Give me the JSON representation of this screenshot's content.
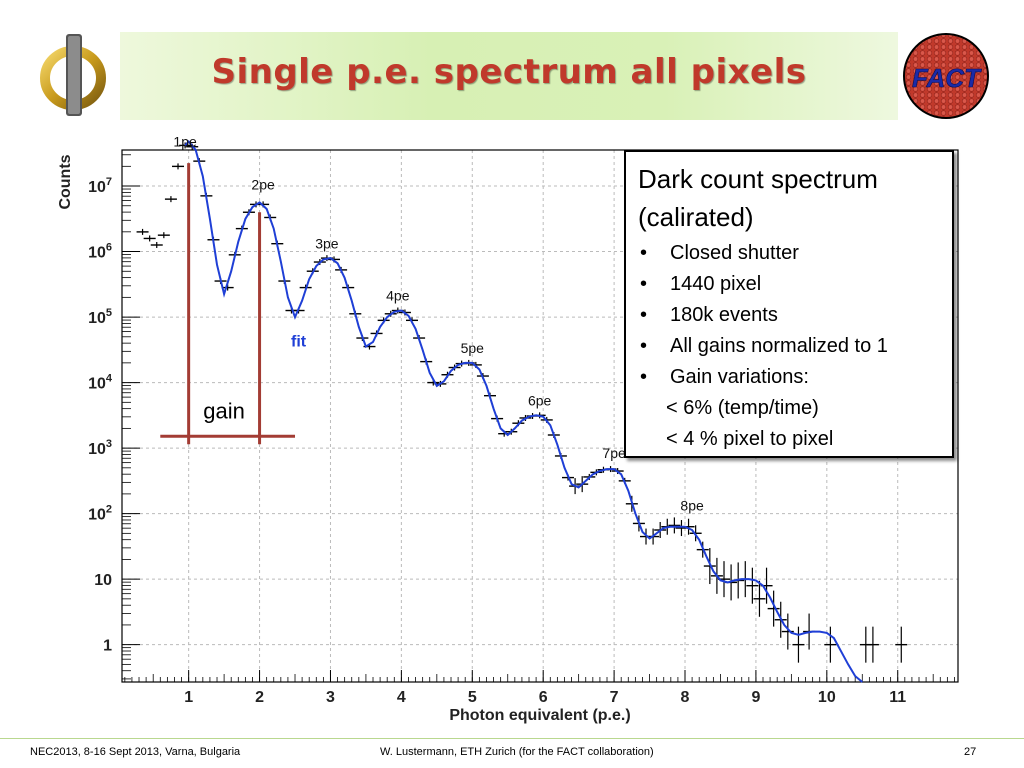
{
  "slide": {
    "title": "Single p.e. spectrum all pixels",
    "logo_left_glyph": "Φ",
    "logo_right_text": "FACT"
  },
  "info_box": {
    "title_line1": "Dark count spectrum",
    "title_line2": "(calirated)",
    "bullets": [
      "Closed shutter",
      "1440 pixel",
      "180k events",
      "All gains normalized to 1",
      "Gain variations:"
    ],
    "sub_lines": [
      "< 6% (temp/time)",
      "< 4 % pixel to pixel"
    ]
  },
  "footer": {
    "left": "NEC2013, 8-16 Sept 2013, Varna, Bulgaria",
    "center": "W. Lustermann, ETH Zurich (for the FACT collaboration)",
    "page": "27"
  },
  "colors": {
    "title": "#c0392b",
    "fit_line": "#1f3fd6",
    "gain_marker": "#a33c34",
    "fit_label": "#1f3fd6"
  },
  "chart_data": {
    "type": "line",
    "xlabel": "Photon equivalent (p.e.)",
    "ylabel": "Counts",
    "x_ticks": [
      "1",
      "2",
      "3",
      "4",
      "5",
      "6",
      "7",
      "8",
      "9",
      "10",
      "11"
    ],
    "y_ticks": [
      {
        "base": "1",
        "exp": ""
      },
      {
        "base": "10",
        "exp": ""
      },
      {
        "base": "10",
        "exp": "2"
      },
      {
        "base": "10",
        "exp": "3"
      },
      {
        "base": "10",
        "exp": "4"
      },
      {
        "base": "10",
        "exp": "5"
      },
      {
        "base": "10",
        "exp": "6"
      },
      {
        "base": "10",
        "exp": "7"
      }
    ],
    "xlim": [
      0.06,
      11.85
    ],
    "ylim_log10": [
      -0.57,
      7.55
    ],
    "log_y": true,
    "grid": true,
    "peak_labels": [
      {
        "text": "1pe",
        "x": 0.95,
        "y_log": 7.6
      },
      {
        "text": "2pe",
        "x": 2.05,
        "y_log": 6.95
      },
      {
        "text": "3pe",
        "x": 2.95,
        "y_log": 6.05
      },
      {
        "text": "4pe",
        "x": 3.95,
        "y_log": 5.25
      },
      {
        "text": "5pe",
        "x": 5.0,
        "y_log": 4.45
      },
      {
        "text": "6pe",
        "x": 5.95,
        "y_log": 3.65
      },
      {
        "text": "7pe",
        "x": 7.0,
        "y_log": 2.85
      },
      {
        "text": "8pe",
        "x": 8.1,
        "y_log": 2.05
      }
    ],
    "annotations": [
      {
        "text": "fit",
        "x": 2.55,
        "y_log": 4.55
      },
      {
        "text": "gain",
        "x": 1.5,
        "y_log": 3.45
      }
    ],
    "gain_marker": {
      "x1": 1.0,
      "x2": 2.0,
      "y_log_top1": 7.35,
      "y_log_top2": 6.6,
      "y_log_base": 3.18
    },
    "fit": {
      "x": [
        0.95,
        1.0,
        1.1,
        1.2,
        1.3,
        1.4,
        1.5,
        1.6,
        1.7,
        1.8,
        1.9,
        2.0,
        2.1,
        2.2,
        2.3,
        2.4,
        2.5,
        2.6,
        2.7,
        2.8,
        2.9,
        3.0,
        3.1,
        3.2,
        3.3,
        3.4,
        3.5,
        3.6,
        3.7,
        3.8,
        3.9,
        4.0,
        4.1,
        4.2,
        4.3,
        4.4,
        4.5,
        4.6,
        4.7,
        4.8,
        4.9,
        5.0,
        5.1,
        5.2,
        5.3,
        5.4,
        5.5,
        5.6,
        5.7,
        5.8,
        5.9,
        6.0,
        6.1,
        6.2,
        6.3,
        6.4,
        6.5,
        6.6,
        6.7,
        6.8,
        6.9,
        7.0,
        7.1,
        7.2,
        7.3,
        7.4,
        7.5,
        7.6,
        7.7,
        7.8,
        7.9,
        8.0,
        8.1,
        8.2,
        8.3,
        8.4,
        8.5,
        8.6,
        8.7,
        8.8,
        8.9,
        9.0,
        9.1,
        9.2,
        9.3,
        9.4,
        9.5,
        9.6,
        9.7,
        9.8,
        9.9,
        10.0,
        10.1,
        10.2,
        10.3,
        10.4,
        10.5,
        10.6,
        10.65
      ],
      "y_log": [
        7.62,
        7.68,
        7.55,
        7.15,
        6.5,
        5.8,
        5.35,
        5.7,
        6.15,
        6.5,
        6.68,
        6.75,
        6.65,
        6.35,
        5.85,
        5.3,
        5.0,
        5.25,
        5.58,
        5.78,
        5.88,
        5.9,
        5.82,
        5.6,
        5.25,
        4.85,
        4.55,
        4.62,
        4.85,
        5.0,
        5.08,
        5.1,
        5.02,
        4.82,
        4.5,
        4.15,
        3.95,
        4.02,
        4.18,
        4.27,
        4.3,
        4.3,
        4.2,
        3.95,
        3.6,
        3.3,
        3.2,
        3.3,
        3.42,
        3.48,
        3.5,
        3.48,
        3.35,
        3.05,
        2.7,
        2.45,
        2.4,
        2.5,
        2.6,
        2.65,
        2.68,
        2.68,
        2.6,
        2.35,
        2.0,
        1.72,
        1.62,
        1.7,
        1.78,
        1.8,
        1.8,
        1.8,
        1.75,
        1.6,
        1.35,
        1.12,
        0.98,
        0.95,
        0.98,
        1.0,
        1.0,
        0.98,
        0.9,
        0.72,
        0.5,
        0.3,
        0.18,
        0.15,
        0.18,
        0.2,
        0.2,
        0.18,
        0.1,
        -0.1,
        -0.3,
        -0.48,
        -0.57
      ]
    },
    "data_points": [
      {
        "x": 0.35,
        "y_log": 6.3
      },
      {
        "x": 0.45,
        "y_log": 6.2
      },
      {
        "x": 0.55,
        "y_log": 6.1
      },
      {
        "x": 0.65,
        "y_log": 6.25
      },
      {
        "x": 0.75,
        "y_log": 6.8
      },
      {
        "x": 0.85,
        "y_log": 7.3
      },
      {
        "x": 0.95,
        "y_log": 7.62
      },
      {
        "x": 1.05,
        "y_log": 7.6
      },
      {
        "x": 1.15,
        "y_log": 7.38
      },
      {
        "x": 1.25,
        "y_log": 6.85
      },
      {
        "x": 1.35,
        "y_log": 6.18
      },
      {
        "x": 1.45,
        "y_log": 5.55
      },
      {
        "x": 1.55,
        "y_log": 5.45
      },
      {
        "x": 1.65,
        "y_log": 5.95
      },
      {
        "x": 1.75,
        "y_log": 6.35
      },
      {
        "x": 1.85,
        "y_log": 6.6
      },
      {
        "x": 1.95,
        "y_log": 6.72
      },
      {
        "x": 2.05,
        "y_log": 6.72
      },
      {
        "x": 2.15,
        "y_log": 6.52
      },
      {
        "x": 2.25,
        "y_log": 6.12
      },
      {
        "x": 2.35,
        "y_log": 5.55
      },
      {
        "x": 2.45,
        "y_log": 5.1
      },
      {
        "x": 2.55,
        "y_log": 5.1
      },
      {
        "x": 2.65,
        "y_log": 5.45
      },
      {
        "x": 2.75,
        "y_log": 5.7
      },
      {
        "x": 2.85,
        "y_log": 5.84
      },
      {
        "x": 2.95,
        "y_log": 5.9
      },
      {
        "x": 3.05,
        "y_log": 5.88
      },
      {
        "x": 3.15,
        "y_log": 5.72
      },
      {
        "x": 3.25,
        "y_log": 5.45
      },
      {
        "x": 3.35,
        "y_log": 5.05
      },
      {
        "x": 3.45,
        "y_log": 4.68
      },
      {
        "x": 3.55,
        "y_log": 4.55
      },
      {
        "x": 3.65,
        "y_log": 4.75
      },
      {
        "x": 3.75,
        "y_log": 4.95
      },
      {
        "x": 3.85,
        "y_log": 5.05
      },
      {
        "x": 3.95,
        "y_log": 5.1
      },
      {
        "x": 4.05,
        "y_log": 5.07
      },
      {
        "x": 4.15,
        "y_log": 4.95
      },
      {
        "x": 4.25,
        "y_log": 4.68
      },
      {
        "x": 4.35,
        "y_log": 4.32
      },
      {
        "x": 4.45,
        "y_log": 4.0
      },
      {
        "x": 4.55,
        "y_log": 3.98
      },
      {
        "x": 4.65,
        "y_log": 4.12
      },
      {
        "x": 4.75,
        "y_log": 4.23
      },
      {
        "x": 4.85,
        "y_log": 4.29
      },
      {
        "x": 4.95,
        "y_log": 4.3
      },
      {
        "x": 5.05,
        "y_log": 4.27
      },
      {
        "x": 5.15,
        "y_log": 4.1
      },
      {
        "x": 5.25,
        "y_log": 3.8
      },
      {
        "x": 5.35,
        "y_log": 3.45
      },
      {
        "x": 5.45,
        "y_log": 3.22
      },
      {
        "x": 5.55,
        "y_log": 3.25
      },
      {
        "x": 5.65,
        "y_log": 3.38
      },
      {
        "x": 5.75,
        "y_log": 3.46
      },
      {
        "x": 5.85,
        "y_log": 3.49
      },
      {
        "x": 5.95,
        "y_log": 3.5
      },
      {
        "x": 6.05,
        "y_log": 3.43
      },
      {
        "x": 6.15,
        "y_log": 3.2
      },
      {
        "x": 6.25,
        "y_log": 2.88
      },
      {
        "x": 6.35,
        "y_log": 2.55
      },
      {
        "x": 6.45,
        "y_log": 2.42
      },
      {
        "x": 6.55,
        "y_log": 2.45
      },
      {
        "x": 6.65,
        "y_log": 2.56
      },
      {
        "x": 6.75,
        "y_log": 2.63
      },
      {
        "x": 6.85,
        "y_log": 2.67
      },
      {
        "x": 6.95,
        "y_log": 2.68
      },
      {
        "x": 7.05,
        "y_log": 2.65
      },
      {
        "x": 7.15,
        "y_log": 2.5
      },
      {
        "x": 7.25,
        "y_log": 2.15
      },
      {
        "x": 7.35,
        "y_log": 1.85
      },
      {
        "x": 7.45,
        "y_log": 1.65
      },
      {
        "x": 7.55,
        "y_log": 1.65
      },
      {
        "x": 7.65,
        "y_log": 1.75
      },
      {
        "x": 7.75,
        "y_log": 1.8
      },
      {
        "x": 7.85,
        "y_log": 1.82
      },
      {
        "x": 7.95,
        "y_log": 1.78
      },
      {
        "x": 8.05,
        "y_log": 1.8
      },
      {
        "x": 8.15,
        "y_log": 1.7
      },
      {
        "x": 8.25,
        "y_log": 1.45
      },
      {
        "x": 8.35,
        "y_log": 1.2
      },
      {
        "x": 8.45,
        "y_log": 1.05
      },
      {
        "x": 8.55,
        "y_log": 1.0
      },
      {
        "x": 8.65,
        "y_log": 0.95
      },
      {
        "x": 8.75,
        "y_log": 0.98
      },
      {
        "x": 8.85,
        "y_log": 1.0
      },
      {
        "x": 8.95,
        "y_log": 0.9
      },
      {
        "x": 9.05,
        "y_log": 0.7
      },
      {
        "x": 9.15,
        "y_log": 0.9
      },
      {
        "x": 9.25,
        "y_log": 0.55
      },
      {
        "x": 9.35,
        "y_log": 0.38
      },
      {
        "x": 9.45,
        "y_log": 0.2
      },
      {
        "x": 9.6,
        "y_log": 0.0
      },
      {
        "x": 9.75,
        "y_log": 0.2
      },
      {
        "x": 10.05,
        "y_log": 0.0
      },
      {
        "x": 10.55,
        "y_log": 0.0
      },
      {
        "x": 10.65,
        "y_log": 0.0
      },
      {
        "x": 11.05,
        "y_log": 0.0
      }
    ]
  }
}
